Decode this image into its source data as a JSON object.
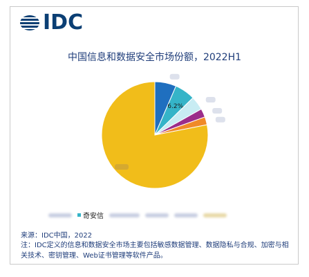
{
  "logo": {
    "text": "IDC",
    "color": "#0b3f74",
    "icon": "globe-stripes-icon"
  },
  "chart_data": {
    "type": "pie",
    "title": "中国信息和数据安全市场份额，2022H1",
    "slices": [
      {
        "label": "",
        "value": 6.5,
        "color": "#1f6fbf",
        "shown_value": ""
      },
      {
        "label": "奇安信",
        "value": 6.2,
        "color": "#35b4c8",
        "shown_value": "6.2%"
      },
      {
        "label": "",
        "value": 4.2,
        "color": "#c8ecf3",
        "shown_value": ""
      },
      {
        "label": "",
        "value": 2.6,
        "color": "#9b2d8a",
        "shown_value": ""
      },
      {
        "label": "",
        "value": 2.4,
        "color": "#f08a28",
        "shown_value": ""
      },
      {
        "label": "",
        "value": 78.1,
        "color": "#f1bd1a",
        "shown_value": ""
      }
    ],
    "legend": [
      {
        "label": "",
        "color": "#1f6fbf"
      },
      {
        "label": "奇安信",
        "color": "#35b4c8"
      },
      {
        "label": "",
        "color": "#c8ecf3"
      },
      {
        "label": "",
        "color": "#9b2d8a"
      },
      {
        "label": "",
        "color": "#f08a28"
      },
      {
        "label": "",
        "color": "#f1bd1a"
      }
    ]
  },
  "footer": {
    "source": "来源：IDC中国，2022",
    "note": "注：IDC定义的信息和数据安全市场主要包括敏感数据管理、数据隐私与合规、加密与相关技术、密钥管理、Web证书管理等软件产品。"
  }
}
